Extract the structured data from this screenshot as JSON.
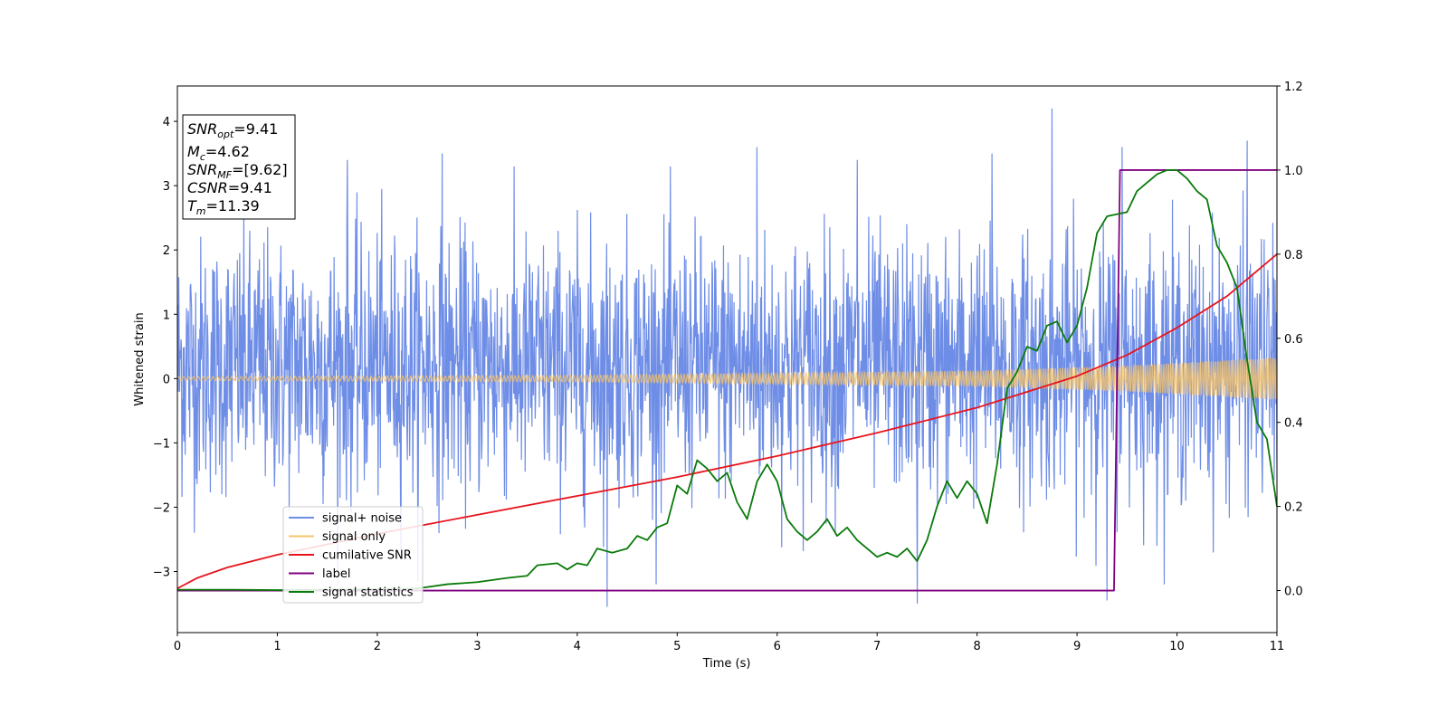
{
  "chart_data": {
    "type": "line",
    "xlabel": "Time (s)",
    "ylabel": "Whitened strain",
    "xlim": [
      0,
      11
    ],
    "ylim": [
      -3.95,
      4.55
    ],
    "y2lim": [
      -0.1,
      1.2
    ],
    "xticks": [
      "0",
      "1",
      "2",
      "3",
      "4",
      "5",
      "6",
      "7",
      "8",
      "9",
      "10",
      "11"
    ],
    "yticks": [
      "−3",
      "−2",
      "−1",
      "0",
      "1",
      "2",
      "3",
      "4"
    ],
    "y2ticks": [
      "0.0",
      "0.2",
      "0.4",
      "0.6",
      "0.8",
      "1.0",
      "1.2"
    ],
    "legend_position": "lower-left",
    "grid": false,
    "info_box": {
      "position": "top-left",
      "lines": [
        {
          "base": "SNR",
          "sub": "opt",
          "value": "=9.41"
        },
        {
          "base": "M",
          "sub": "c",
          "value": "=4.62"
        },
        {
          "base": "SNR",
          "sub": "MF",
          "value": "=[9.62]"
        },
        {
          "base": "CSNR",
          "sub": "",
          "value": "=9.41"
        },
        {
          "base": "T",
          "sub": "m",
          "value": "=11.39"
        }
      ]
    },
    "series": [
      {
        "name": "signal+ noise",
        "axis": "left",
        "color": "#6e8de6",
        "kind": "noise",
        "typical_envelope": [
          -1.6,
          2.0
        ],
        "spike_extremes": [
          [
            1.7,
            3.4
          ],
          [
            2.65,
            3.5
          ],
          [
            4.3,
            -3.55
          ],
          [
            5.8,
            3.6
          ],
          [
            6.8,
            3.4
          ],
          [
            7.4,
            -3.5
          ],
          [
            8.15,
            3.5
          ],
          [
            8.75,
            4.2
          ],
          [
            9.3,
            -3.45
          ],
          [
            9.45,
            3.6
          ],
          [
            10.7,
            3.7
          ]
        ]
      },
      {
        "name": "signal only",
        "axis": "left",
        "color": "#f5c36a",
        "kind": "chirp",
        "amplitude_envelope": [
          [
            0,
            0.03
          ],
          [
            4,
            0.05
          ],
          [
            8,
            0.12
          ],
          [
            9.5,
            0.2
          ],
          [
            11,
            0.33
          ]
        ]
      },
      {
        "name": "cumilative SNR",
        "axis": "right",
        "color": "#e8141c",
        "points": [
          [
            0,
            0.005
          ],
          [
            0.2,
            0.03
          ],
          [
            0.5,
            0.055
          ],
          [
            1,
            0.085
          ],
          [
            2,
            0.135
          ],
          [
            3,
            0.18
          ],
          [
            4,
            0.225
          ],
          [
            5,
            0.27
          ],
          [
            6,
            0.32
          ],
          [
            7,
            0.375
          ],
          [
            8,
            0.435
          ],
          [
            9,
            0.51
          ],
          [
            9.5,
            0.56
          ],
          [
            10,
            0.625
          ],
          [
            10.5,
            0.7
          ],
          [
            11,
            0.8
          ]
        ]
      },
      {
        "name": "label",
        "axis": "right",
        "color": "#800080",
        "points": [
          [
            0,
            0.0
          ],
          [
            9.37,
            0.0
          ],
          [
            9.43,
            1.0
          ],
          [
            11,
            1.0
          ]
        ]
      },
      {
        "name": "signal statistics",
        "axis": "right",
        "color": "#0a7a0a",
        "points": [
          [
            0,
            0.002
          ],
          [
            0.5,
            0.002
          ],
          [
            1,
            0.001
          ],
          [
            1.5,
            0.002
          ],
          [
            2,
            0.003
          ],
          [
            2.4,
            0.005
          ],
          [
            2.7,
            0.015
          ],
          [
            3.0,
            0.02
          ],
          [
            3.3,
            0.03
          ],
          [
            3.5,
            0.035
          ],
          [
            3.6,
            0.06
          ],
          [
            3.8,
            0.065
          ],
          [
            3.9,
            0.05
          ],
          [
            4.0,
            0.065
          ],
          [
            4.1,
            0.06
          ],
          [
            4.2,
            0.1
          ],
          [
            4.35,
            0.09
          ],
          [
            4.5,
            0.1
          ],
          [
            4.6,
            0.13
          ],
          [
            4.7,
            0.12
          ],
          [
            4.8,
            0.15
          ],
          [
            4.9,
            0.16
          ],
          [
            5.0,
            0.25
          ],
          [
            5.1,
            0.23
          ],
          [
            5.2,
            0.31
          ],
          [
            5.3,
            0.29
          ],
          [
            5.4,
            0.26
          ],
          [
            5.5,
            0.28
          ],
          [
            5.6,
            0.21
          ],
          [
            5.7,
            0.17
          ],
          [
            5.8,
            0.26
          ],
          [
            5.9,
            0.3
          ],
          [
            6.0,
            0.26
          ],
          [
            6.1,
            0.17
          ],
          [
            6.2,
            0.14
          ],
          [
            6.3,
            0.12
          ],
          [
            6.4,
            0.14
          ],
          [
            6.5,
            0.17
          ],
          [
            6.6,
            0.13
          ],
          [
            6.7,
            0.15
          ],
          [
            6.8,
            0.12
          ],
          [
            6.9,
            0.1
          ],
          [
            7.0,
            0.08
          ],
          [
            7.1,
            0.09
          ],
          [
            7.2,
            0.08
          ],
          [
            7.3,
            0.1
          ],
          [
            7.4,
            0.07
          ],
          [
            7.5,
            0.12
          ],
          [
            7.6,
            0.2
          ],
          [
            7.7,
            0.26
          ],
          [
            7.8,
            0.22
          ],
          [
            7.9,
            0.26
          ],
          [
            8.0,
            0.23
          ],
          [
            8.1,
            0.16
          ],
          [
            8.2,
            0.3
          ],
          [
            8.3,
            0.48
          ],
          [
            8.4,
            0.52
          ],
          [
            8.5,
            0.58
          ],
          [
            8.6,
            0.57
          ],
          [
            8.7,
            0.63
          ],
          [
            8.8,
            0.64
          ],
          [
            8.9,
            0.59
          ],
          [
            9.0,
            0.63
          ],
          [
            9.1,
            0.72
          ],
          [
            9.2,
            0.85
          ],
          [
            9.3,
            0.89
          ],
          [
            9.5,
            0.9
          ],
          [
            9.6,
            0.95
          ],
          [
            9.7,
            0.97
          ],
          [
            9.8,
            0.99
          ],
          [
            9.9,
            1.0
          ],
          [
            10.0,
            1.0
          ],
          [
            10.1,
            0.98
          ],
          [
            10.2,
            0.95
          ],
          [
            10.3,
            0.93
          ],
          [
            10.4,
            0.82
          ],
          [
            10.5,
            0.78
          ],
          [
            10.6,
            0.72
          ],
          [
            10.7,
            0.55
          ],
          [
            10.8,
            0.4
          ],
          [
            10.9,
            0.36
          ],
          [
            11.0,
            0.2
          ]
        ]
      }
    ]
  }
}
